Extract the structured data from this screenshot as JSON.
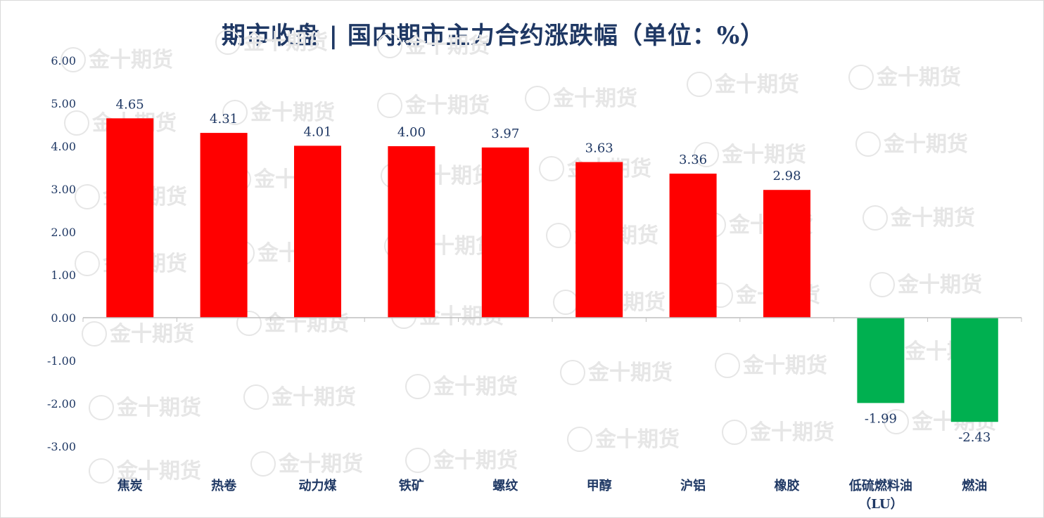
{
  "chart_data": {
    "type": "bar",
    "title": "期市收盘 | 国内期市主力合约涨跌幅（单位：%）",
    "categories": [
      "焦炭",
      "热卷",
      "动力煤",
      "铁矿",
      "螺纹",
      "甲醇",
      "沪铝",
      "橡胶",
      "低硫燃料油（LU）",
      "燃油"
    ],
    "values": [
      4.65,
      4.31,
      4.01,
      4.0,
      3.97,
      3.63,
      3.36,
      2.98,
      -1.99,
      -2.43
    ],
    "value_labels": [
      "4.65",
      "4.31",
      "4.01",
      "4.00",
      "3.97",
      "3.63",
      "3.36",
      "2.98",
      "-1.99",
      "-2.43"
    ],
    "ylim": [
      -3,
      6
    ],
    "yticks": [
      "6.00",
      "5.00",
      "4.00",
      "3.00",
      "2.00",
      "1.00",
      "0.00",
      "-1.00",
      "-2.00",
      "-3.00"
    ],
    "ytick_values": [
      6,
      5,
      4,
      3,
      2,
      1,
      0,
      -1,
      -2,
      -3
    ],
    "xlabel": "",
    "ylabel": "",
    "grid": false,
    "legend": "none",
    "colors": {
      "positive": "#ff0000",
      "negative": "#00b050",
      "text": "#1f3864",
      "axis": "#bfbfbf"
    }
  },
  "watermark": {
    "text": "金十期货"
  }
}
